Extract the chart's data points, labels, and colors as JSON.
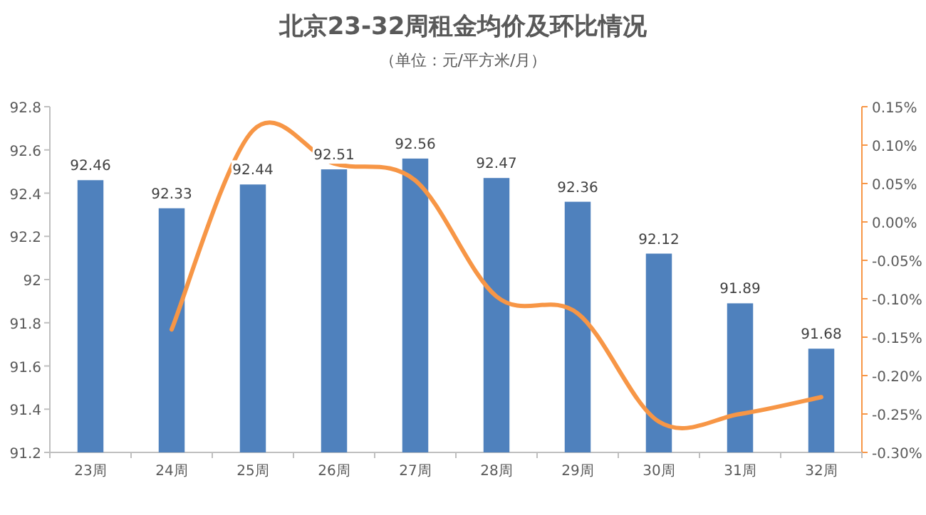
{
  "chart_data": {
    "type": "bar",
    "title": "北京23-32周租金均价及环比情况",
    "subtitle": "（单位：元/平方米/月）",
    "categories": [
      "23周",
      "24周",
      "25周",
      "26周",
      "27周",
      "28周",
      "29周",
      "30周",
      "31周",
      "32周"
    ],
    "series": [
      {
        "color": "#4f81bd",
        "values": [
          92.46,
          92.33,
          92.44,
          92.51,
          92.56,
          92.47,
          92.36,
          92.12,
          91.89,
          91.68
        ],
        "value_labels": [
          "92.46",
          "92.33",
          "92.44",
          "92.51",
          "92.56",
          "92.47",
          "92.36",
          "92.12",
          "91.89",
          "91.68"
        ]
      },
      {
        "type": "line",
        "axis": "y2",
        "color": "#f79646",
        "values": [
          null,
          -0.14,
          0.119,
          0.076,
          0.054,
          -0.097,
          -0.119,
          -0.26,
          -0.25,
          -0.228
        ]
      }
    ],
    "ylim": [
      91.2,
      92.8
    ],
    "yticks": [
      92.8,
      92.6,
      92.4,
      92.2,
      92,
      91.8,
      91.6,
      91.4,
      91.2
    ],
    "y2lim": [
      -0.3,
      0.15
    ],
    "y2ticks": [
      {
        "value": 0.15,
        "label": "0.15%"
      },
      {
        "value": 0.1,
        "label": "0.10%"
      },
      {
        "value": 0.05,
        "label": "0.05%"
      },
      {
        "value": 0,
        "label": "0.00%"
      },
      {
        "value": -0.05,
        "label": "-0.05%"
      },
      {
        "value": -0.1,
        "label": "-0.10%"
      },
      {
        "value": -0.15,
        "label": "-0.15%"
      },
      {
        "value": -0.2,
        "label": "-0.20%"
      },
      {
        "value": -0.25,
        "label": "-0.25%"
      },
      {
        "value": -0.3,
        "label": "-0.30%"
      }
    ]
  }
}
